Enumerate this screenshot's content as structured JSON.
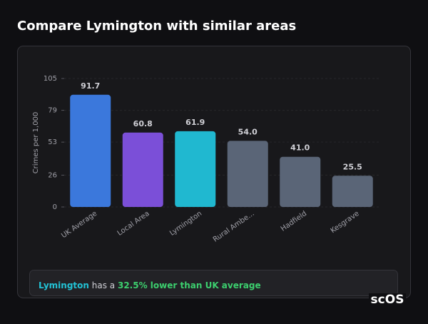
{
  "chart_data": {
    "type": "bar",
    "title": "Compare Lymington with similar areas",
    "y_label": "Crimes per 1,000",
    "categories": [
      "UK Average",
      "Local Area",
      "Lymington",
      "Rural Ambe...",
      "Hadfield",
      "Kesgrave"
    ],
    "values": [
      91.7,
      60.8,
      61.9,
      54.0,
      41.0,
      25.5
    ],
    "value_labels": [
      "91.7",
      "60.8",
      "61.9",
      "54.0",
      "41.0",
      "25.5"
    ],
    "colors": [
      "#3b78dc",
      "#7b4fd8",
      "#20b8d0",
      "#5a6577",
      "#5a6577",
      "#5a6577"
    ],
    "ylim": [
      0,
      105
    ],
    "yticks": [
      0,
      26,
      53,
      79,
      105
    ],
    "grid": true
  },
  "summary": {
    "area": "Lymington",
    "text": "has a",
    "highlight": "32.5% lower than UK average"
  },
  "logo": "scOS"
}
